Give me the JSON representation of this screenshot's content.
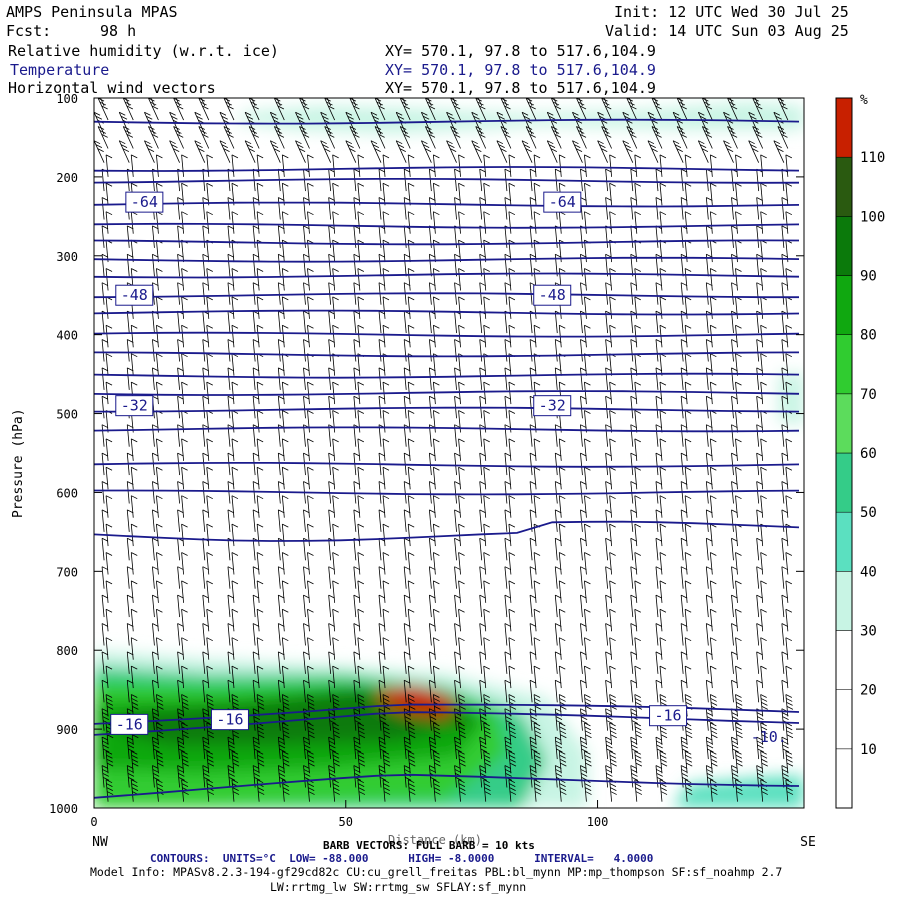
{
  "header": {
    "title": "AMPS Peninsula MPAS",
    "fcst_label": "Fcst:",
    "fcst_value": "98 h",
    "init": "Init: 12 UTC Wed 30 Jul 25",
    "valid": "Valid: 14 UTC Sun 03 Aug 25",
    "fields": [
      {
        "name": "Relative humidity (w.r.t. ice)",
        "xy": "XY= 570.1, 97.8 to 517.6,104.9"
      },
      {
        "name": "Temperature",
        "xy": "XY= 570.1, 97.8 to 517.6,104.9"
      },
      {
        "name": "Horizontal wind vectors",
        "xy": "XY= 570.1, 97.8 to 517.6,104.9"
      }
    ]
  },
  "colors": {
    "contour": "#1a1a8c",
    "barb": "#000000",
    "rh_scale": [
      "#ffffff",
      "#ffffff",
      "#ffffff",
      "#c8f4e4",
      "#5be0c0",
      "#34cc88",
      "#5cdc5c",
      "#30cc30",
      "#10a810",
      "#0b7a0b",
      "#2a5a10",
      "#c82000"
    ]
  },
  "chart_data": {
    "type": "heatmap",
    "xlabel": "Distance (km)",
    "ylabel": "Pressure (hPa)",
    "x_ticks": [
      0,
      50,
      100
    ],
    "x_range": [
      0,
      141
    ],
    "y_ticks": [
      100,
      200,
      300,
      400,
      500,
      600,
      700,
      800,
      900,
      1000
    ],
    "y_range": [
      100,
      1000
    ],
    "left_end_label": "NW",
    "right_end_label": "SE",
    "colorbar": {
      "unit": "%",
      "ticks": [
        10,
        20,
        30,
        40,
        50,
        60,
        70,
        80,
        90,
        100,
        110
      ],
      "bounds": [
        0,
        10,
        20,
        30,
        40,
        50,
        60,
        70,
        80,
        90,
        100,
        110,
        120
      ]
    },
    "temperature_labels": [
      {
        "text": "-64",
        "x": 10,
        "p": 232
      },
      {
        "text": "-64",
        "x": 93,
        "p": 232
      },
      {
        "text": "-48",
        "x": 8,
        "p": 350
      },
      {
        "text": "-48",
        "x": 91,
        "p": 350
      },
      {
        "text": "-32",
        "x": 8,
        "p": 490
      },
      {
        "text": "-32",
        "x": 91,
        "p": 490
      },
      {
        "text": "-16",
        "x": 7,
        "p": 894
      },
      {
        "text": "-16",
        "x": 27,
        "p": 888
      },
      {
        "text": "-16",
        "x": 114,
        "p": 883
      },
      {
        "text": "-10.",
        "x": 134,
        "p": 910
      }
    ],
    "temperature_levels_p_left": [
      130,
      190,
      205,
      235,
      262,
      283,
      305,
      325,
      350,
      372,
      400,
      425,
      452,
      474,
      495,
      520,
      565,
      600,
      655,
      893,
      905,
      985
    ],
    "rh_blobs": [
      {
        "x": 40,
        "p": 920,
        "rh": 92
      },
      {
        "x": 65,
        "p": 870,
        "rh": 112
      },
      {
        "x": 15,
        "p": 890,
        "rh": 85
      },
      {
        "x": 115,
        "p": 975,
        "rh": 35
      }
    ]
  },
  "footer": {
    "barb_label": "BARB VECTORS: FULL BARB = 10 kts",
    "contours": "CONTOURS:  UNITS=°C  LOW= -88.000      HIGH= -8.0000      INTERVAL=   4.0000",
    "model_info": "Model Info: MPASv8.2.3-194-gf29cd82c CU:cu_grell_freitas PBL:bl_mynn MP:mp_thompson SF:sf_noahmp 2.7",
    "model_info2": "LW:rrtmg_lw SW:rrtmg_sw SFLAY:sf_mynn"
  }
}
